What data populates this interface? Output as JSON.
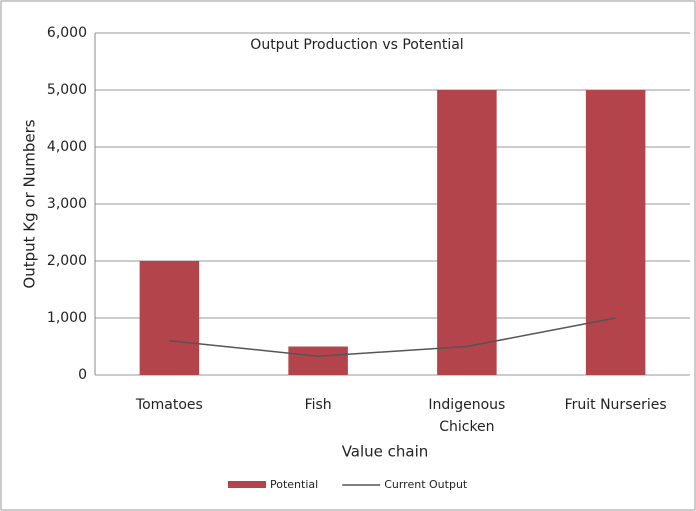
{
  "chart_data": {
    "type": "bar",
    "title": "Output Production vs Potential",
    "x_label": "Value chain",
    "y_label": "Output Kg or Numbers",
    "categories": [
      "Tomatoes",
      "Fish",
      "Indigenous Chicken",
      "Fruit Nurseries"
    ],
    "series": [
      {
        "name": "Potential",
        "type": "bar",
        "color": "#b3444b",
        "values": [
          2000,
          500,
          5000,
          5000
        ]
      },
      {
        "name": "Current Output",
        "type": "line",
        "color": "#555555",
        "values": [
          600,
          330,
          500,
          1000
        ]
      }
    ],
    "ylim": [
      0,
      6000
    ],
    "yticks": [
      0,
      {
        "value": 1000,
        "label": "1,000"
      },
      {
        "value": 2000,
        "label": "2,000"
      },
      {
        "value": 3000,
        "label": "3,000"
      },
      {
        "value": 4000,
        "label": "4,000"
      },
      {
        "value": 5000,
        "label": "5,000"
      },
      {
        "value": 6000,
        "label": "6,000"
      }
    ],
    "grid": true,
    "legend": "bottom"
  }
}
